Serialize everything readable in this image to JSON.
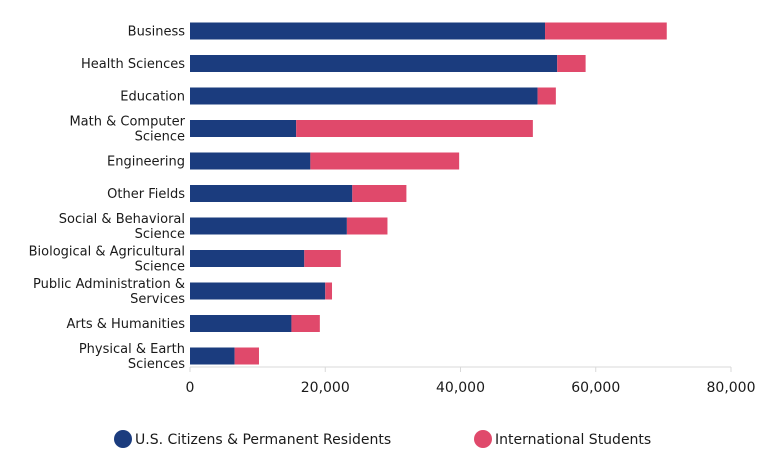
{
  "chart_data": {
    "type": "bar",
    "orientation": "horizontal",
    "stacked": true,
    "categories": [
      "Business",
      "Health Sciences",
      "Education",
      "Math & Computer Science",
      "Engineering",
      "Other Fields",
      "Social & Behavioral Science",
      "Biological & Agricultural Science",
      "Public Administration & Services",
      "Arts & Humanities",
      "Physical & Earth Sciences"
    ],
    "category_label_lines": [
      [
        "Business"
      ],
      [
        "Health Sciences"
      ],
      [
        "Education"
      ],
      [
        "Math & Computer",
        "Science"
      ],
      [
        "Engineering"
      ],
      [
        "Other Fields"
      ],
      [
        "Social & Behavioral",
        "Science"
      ],
      [
        "Biological & Agricultural",
        "Science"
      ],
      [
        "Public Administration &",
        "Services"
      ],
      [
        "Arts & Humanities"
      ],
      [
        "Physical & Earth",
        "Sciences"
      ]
    ],
    "series": [
      {
        "name": "U.S. Citizens & Permanent Residents",
        "color": "#1b3c7e",
        "values": [
          52500,
          54300,
          51400,
          15700,
          17800,
          24000,
          23200,
          16900,
          20000,
          15000,
          6600
        ]
      },
      {
        "name": "International Students",
        "color": "#e0496b",
        "values": [
          18000,
          4200,
          2700,
          35000,
          22000,
          8000,
          6000,
          5400,
          1000,
          4200,
          3600
        ]
      }
    ],
    "xlim": [
      0,
      80000
    ],
    "xticks": [
      0,
      20000,
      40000,
      60000,
      80000
    ],
    "xtick_labels": [
      "0",
      "20,000",
      "40,000",
      "60,000",
      "80,000"
    ],
    "grid": false,
    "legend_position": "bottom"
  }
}
